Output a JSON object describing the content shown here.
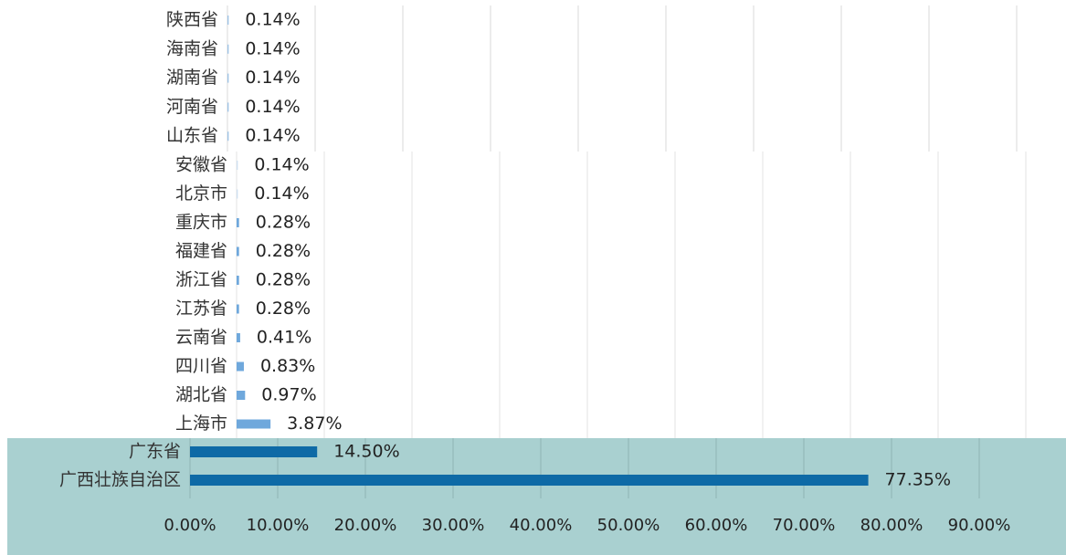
{
  "chart_data": {
    "type": "bar",
    "categories": [
      "陕西省",
      "海南省",
      "湖南省",
      "河南省",
      "山东省",
      "安徽省",
      "北京市",
      "重庆市",
      "福建省",
      "浙江省",
      "江苏省",
      "云南省",
      "四川省",
      "湖北省",
      "上海市",
      "广东省",
      "广西壮族自治区"
    ],
    "values": [
      0.14,
      0.14,
      0.14,
      0.14,
      0.14,
      0.14,
      0.14,
      0.28,
      0.28,
      0.28,
      0.28,
      0.41,
      0.83,
      0.97,
      3.87,
      14.5,
      77.35
    ],
    "value_labels": [
      "0.14%",
      "0.14%",
      "0.14%",
      "0.14%",
      "0.14%",
      "0.14%",
      "0.14%",
      "0.28%",
      "0.28%",
      "0.28%",
      "0.28%",
      "0.41%",
      "0.83%",
      "0.97%",
      "3.87%",
      "14.50%",
      "77.35%"
    ],
    "colors": [
      "#9dc3e6",
      "#9dc3e6",
      "#9dc3e6",
      "#9dc3e6",
      "#9dc3e6",
      "#cfe0f0",
      "#cfe0f0",
      "#6fa8dc",
      "#6fa8dc",
      "#6fa8dc",
      "#6fa8dc",
      "#6fa8dc",
      "#6fa8dc",
      "#6fa8dc",
      "#6fa8dc",
      "#0e6aa6",
      "#0e6aa6"
    ],
    "xlim": [
      0,
      90
    ],
    "xticks": [
      {
        "value": 0,
        "label": "0.00%"
      },
      {
        "value": 10,
        "label": "10.00%"
      },
      {
        "value": 20,
        "label": "20.00%"
      },
      {
        "value": 30,
        "label": "30.00%"
      },
      {
        "value": 40,
        "label": "40.00%"
      },
      {
        "value": 50,
        "label": "50.00%"
      },
      {
        "value": 60,
        "label": "60.00%"
      },
      {
        "value": 70,
        "label": "70.00%"
      },
      {
        "value": 80,
        "label": "80.00%"
      },
      {
        "value": 90,
        "label": "90.00%"
      }
    ],
    "grid": true
  }
}
